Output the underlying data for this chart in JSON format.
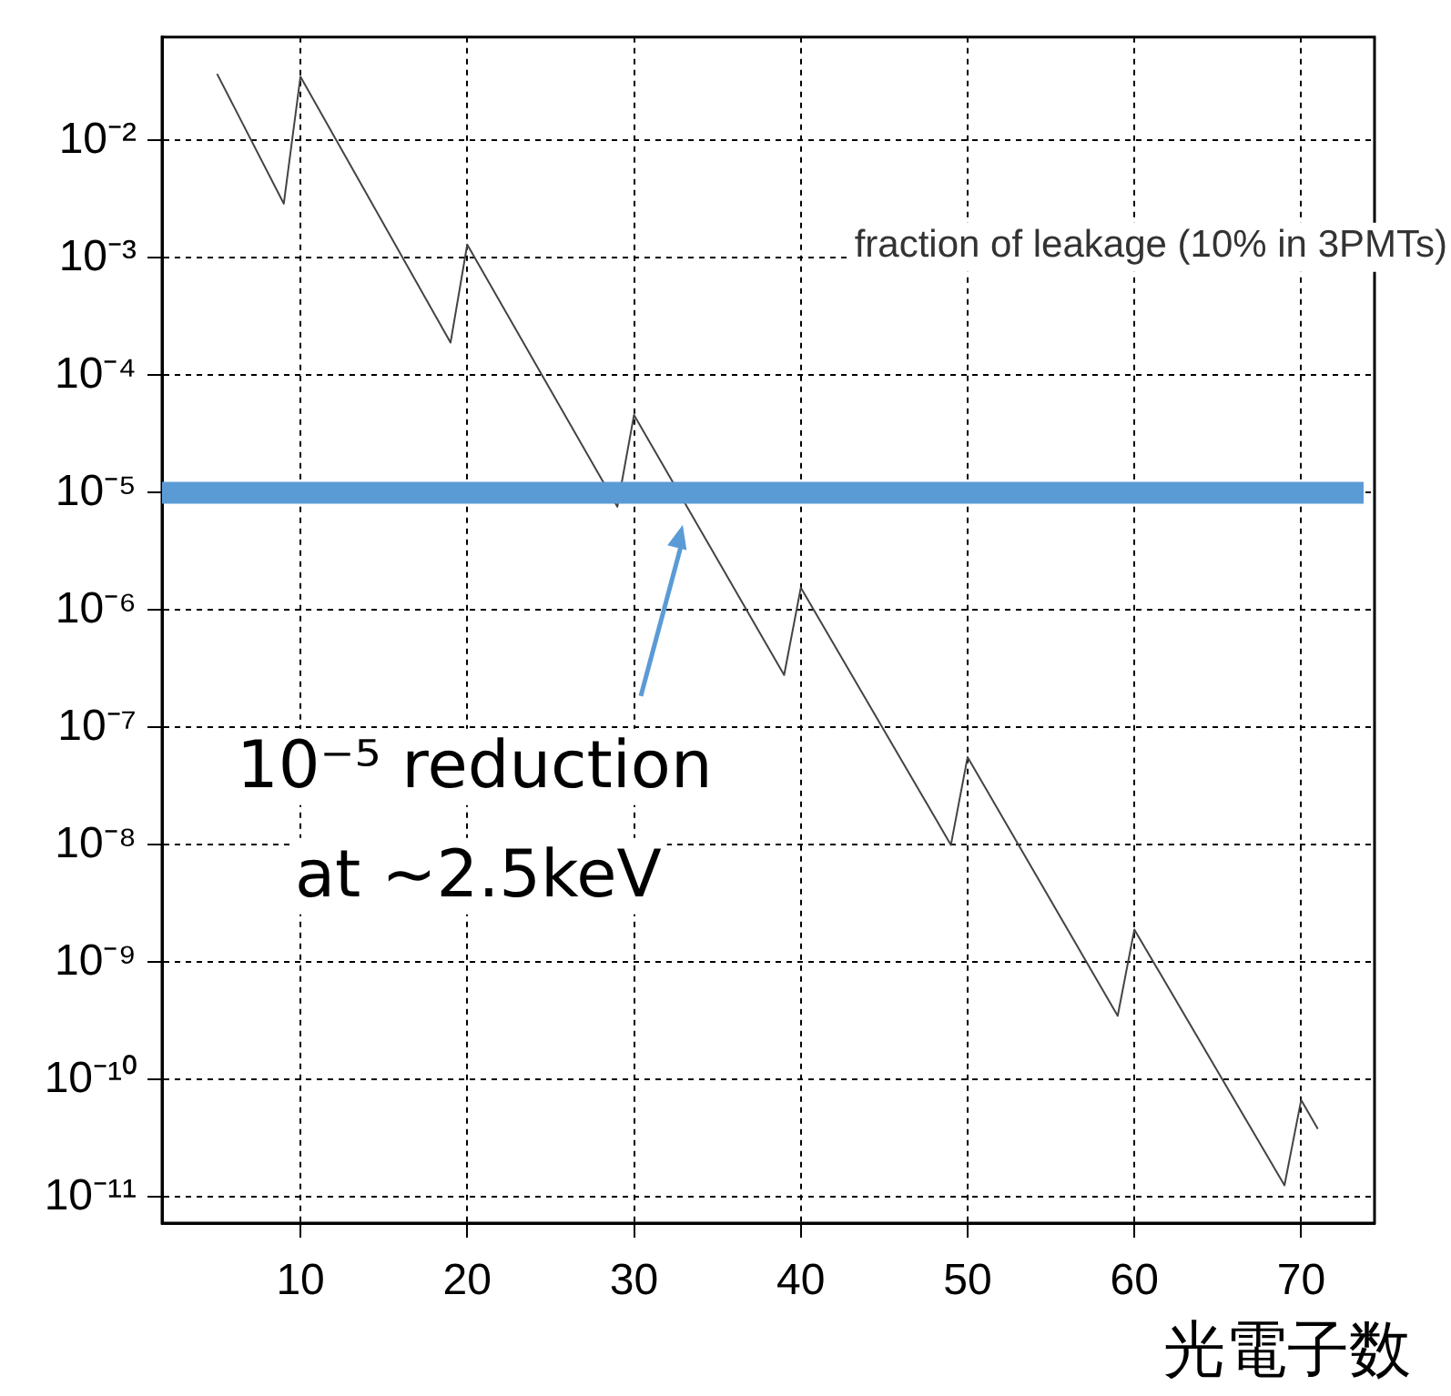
{
  "chart_data": {
    "type": "line",
    "title": "fraction of leakage (10% in 3PMTs)",
    "xlabel": "光電子数",
    "x": [
      5,
      9,
      10,
      19,
      20,
      29,
      30,
      39,
      40,
      49,
      50,
      59,
      60,
      69,
      70,
      71
    ],
    "series": [
      {
        "color": "#444444",
        "values": [
          0.037,
          0.0029,
          0.035,
          0.00019,
          0.0013,
          7.6e-06,
          4.6e-05,
          2.8e-07,
          1.55e-06,
          1e-08,
          5.6e-08,
          3.5e-10,
          1.9e-09,
          1.26e-11,
          6.7e-11,
          3.8e-11
        ]
      }
    ],
    "xlim": [
      1.7,
      74.4
    ],
    "xticks": [
      10,
      20,
      30,
      40,
      50,
      60,
      70
    ],
    "ylim": [
      6e-12,
      0.076
    ],
    "yticks": [
      {
        "value": 0.01,
        "label": "10⁻²"
      },
      {
        "value": 0.001,
        "label": "10⁻³"
      },
      {
        "value": 0.0001,
        "label": "10⁻⁴"
      },
      {
        "value": 1e-05,
        "label": "10⁻⁵"
      },
      {
        "value": 1e-06,
        "label": "10⁻⁶"
      },
      {
        "value": 1e-07,
        "label": "10⁻⁷"
      },
      {
        "value": 1e-08,
        "label": "10⁻⁸"
      },
      {
        "value": 1e-09,
        "label": "10⁻⁹"
      },
      {
        "value": 1e-10,
        "label": "10⁻¹⁰"
      },
      {
        "value": 1e-11,
        "label": "10⁻¹¹"
      }
    ],
    "log": "y",
    "grid": true,
    "legend": false,
    "marker": "none",
    "line_style": "solid",
    "ref_lines": [
      {
        "axis": "y",
        "value": 1e-05,
        "color": "#5b9bd5"
      }
    ],
    "annotations": [
      "10⁻⁵ reduction\nat ~2.5keV"
    ]
  }
}
